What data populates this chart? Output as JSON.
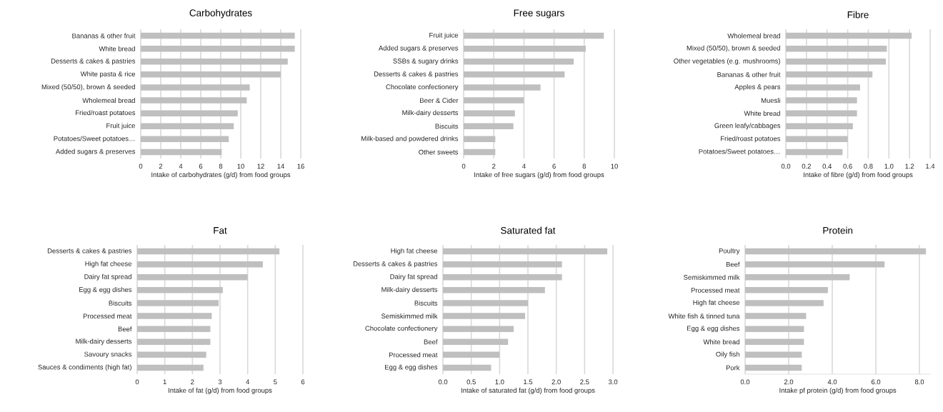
{
  "chart_data": [
    {
      "type": "bar",
      "orientation": "horizontal",
      "title": "Carbohydrates",
      "xlabel": "Intake of carbohydrates (g/d) from food groups",
      "categories": [
        "Bananas & other fruit",
        "White bread",
        "Desserts & cakes & pastries",
        "White pasta & rice",
        "Mixed (50/50), brown & seeded",
        "Wholemeal bread",
        "Fried/roast potatoes",
        "Fruit juice",
        "Potatoes/Sweet potatoes…",
        "Added sugars & preserves"
      ],
      "values": [
        15.4,
        15.4,
        14.7,
        14.0,
        10.9,
        10.6,
        9.7,
        9.3,
        8.8,
        8.1
      ],
      "color": "#bfbfbf",
      "xlim": [
        0,
        16
      ],
      "xticks": [
        0,
        2,
        4,
        6,
        8,
        10,
        12,
        14,
        16
      ],
      "grid": "x"
    },
    {
      "type": "bar",
      "orientation": "horizontal",
      "title": "Free sugars",
      "xlabel": "Intake of free sugars (g/d) from food groups",
      "categories": [
        "Fruit juice",
        "Added sugars & preserves",
        "SSBs & sugary drinks",
        "Desserts & cakes & pastries",
        "Chocolate confectionery",
        "Beer & Cider",
        "Milk-dairy desserts",
        "Biscuits",
        "Milk-based and powdered drinks",
        "Other sweets"
      ],
      "values": [
        9.3,
        8.1,
        7.3,
        6.7,
        5.1,
        4.0,
        3.4,
        3.3,
        2.1,
        2.1
      ],
      "color": "#bfbfbf",
      "xlim": [
        0,
        10
      ],
      "xticks": [
        0,
        2,
        4,
        6,
        8,
        10
      ],
      "grid": "x"
    },
    {
      "type": "bar",
      "orientation": "horizontal",
      "title": "Fibre",
      "xlabel": "Intake of fibre (g/d) from food groups",
      "categories": [
        "Wholemeal bread",
        "Mixed (50/50), brown & seeded",
        "Other vegetables (e.g. mushrooms)",
        "Bananas & other fruit",
        "Apples & pears",
        "Muesli",
        "White bread",
        "Green leafy/cabbages",
        "Fried/roast potatoes",
        "Potatoes/Sweet potatoes…"
      ],
      "values": [
        1.22,
        0.98,
        0.97,
        0.84,
        0.72,
        0.69,
        0.69,
        0.65,
        0.6,
        0.55
      ],
      "color": "#bfbfbf",
      "xlim": [
        0,
        1.4
      ],
      "xticks": [
        {
          "value": 0,
          "label": "0.0"
        },
        {
          "value": 0.2,
          "label": "0.2"
        },
        {
          "value": 0.4,
          "label": "0.4"
        },
        {
          "value": 0.6,
          "label": "0.6"
        },
        {
          "value": 0.8,
          "label": "0.8"
        },
        {
          "value": 1.0,
          "label": "1.0"
        },
        {
          "value": 1.2,
          "label": "1.2"
        },
        {
          "value": 1.4,
          "label": "1.4"
        }
      ],
      "grid": "x"
    },
    {
      "type": "bar",
      "orientation": "horizontal",
      "title": "Fat",
      "xlabel": "Intake of fat (g/d) from food groups",
      "categories": [
        "Desserts & cakes & pastries",
        "High fat cheese",
        "Dairy fat spread",
        "Egg & egg dishes",
        "Biscuits",
        "Processed meat",
        "Beef",
        "Milk-dairy desserts",
        "Savoury snacks",
        "Sauces & condiments (high fat)"
      ],
      "values": [
        5.15,
        4.55,
        4.0,
        3.1,
        2.95,
        2.7,
        2.65,
        2.65,
        2.5,
        2.4
      ],
      "color": "#bfbfbf",
      "xlim": [
        0,
        6
      ],
      "xticks": [
        0,
        1,
        2,
        3,
        4,
        5,
        6
      ],
      "grid": "x"
    },
    {
      "type": "bar",
      "orientation": "horizontal",
      "title": "Saturated fat",
      "xlabel": "Intake of saturated fat (g/d) from food groups",
      "categories": [
        "High fat cheese",
        "Desserts & cakes & pastries",
        "Dairy fat spread",
        "Milk-dairy desserts",
        "Biscuits",
        "Semiskimmed milk",
        "Chocolate confectionery",
        "Beef",
        "Processed meat",
        "Egg & egg dishes"
      ],
      "values": [
        2.9,
        2.1,
        2.1,
        1.8,
        1.5,
        1.45,
        1.25,
        1.15,
        1.0,
        0.85
      ],
      "color": "#bfbfbf",
      "xlim": [
        0,
        3
      ],
      "xticks": [
        {
          "value": 0,
          "label": "0.0"
        },
        {
          "value": 0.5,
          "label": "0.5"
        },
        {
          "value": 1.0,
          "label": "1.0"
        },
        {
          "value": 1.5,
          "label": "1.5"
        },
        {
          "value": 2.0,
          "label": "2.0"
        },
        {
          "value": 2.5,
          "label": "2.5"
        },
        {
          "value": 3.0,
          "label": "3.0"
        }
      ],
      "grid": "x"
    },
    {
      "type": "bar",
      "orientation": "horizontal",
      "title": "Protein",
      "xlabel": "Intake pf protein (g/d) from food groups",
      "categories": [
        "Poultry",
        "Beef",
        "Semiskimmed milk",
        "Processed meat",
        "High fat cheese",
        "White fish & tinned tuna",
        "Egg & egg dishes",
        "White bread",
        "Oily fish",
        "Pork"
      ],
      "values": [
        8.3,
        6.4,
        4.8,
        3.8,
        3.6,
        2.8,
        2.7,
        2.7,
        2.6,
        2.6
      ],
      "color": "#bfbfbf",
      "xlim": [
        0,
        8.5
      ],
      "xticks": [
        {
          "value": 0,
          "label": "0.0"
        },
        {
          "value": 2,
          "label": "2.0"
        },
        {
          "value": 4,
          "label": "4.0"
        },
        {
          "value": 6,
          "label": "6.0"
        },
        {
          "value": 8,
          "label": "8.0"
        }
      ],
      "grid": "x"
    }
  ]
}
